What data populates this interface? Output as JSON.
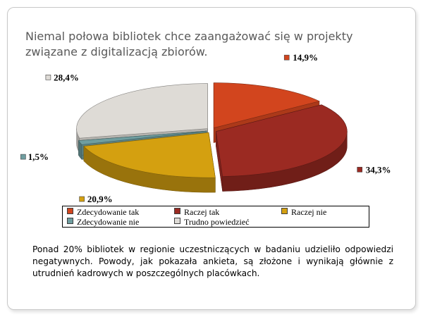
{
  "slide": {
    "title": "Niemal połowa bibliotek chce zaangażować się w projekty związane z digitalizacją zbiorów.",
    "body": "Ponad 20% bibliotek w regionie uczestniczących w badaniu udzieliło odpowiedzi negatywnych. Powody, jak pokazała ankieta, są złożone i wynikają głównie z utrudnień kadrowych w poszczególnych placówkach."
  },
  "chart_data": {
    "type": "pie",
    "title": "",
    "categories": [
      "Zdecydowanie tak",
      "Raczej tak",
      "Raczej nie",
      "Zdecydowanie nie",
      "Trudno powiedzieć"
    ],
    "values": [
      14.9,
      34.3,
      20.9,
      1.5,
      28.4
    ],
    "labels": [
      "14,9%",
      "34,3%",
      "20,9%",
      "1,5%",
      "28,4%"
    ],
    "colors": [
      "#d2451e",
      "#9b2a22",
      "#d4a010",
      "#6f9ea0",
      "#dedbd6"
    ],
    "style": "3d-exploded",
    "legend_position": "bottom"
  }
}
